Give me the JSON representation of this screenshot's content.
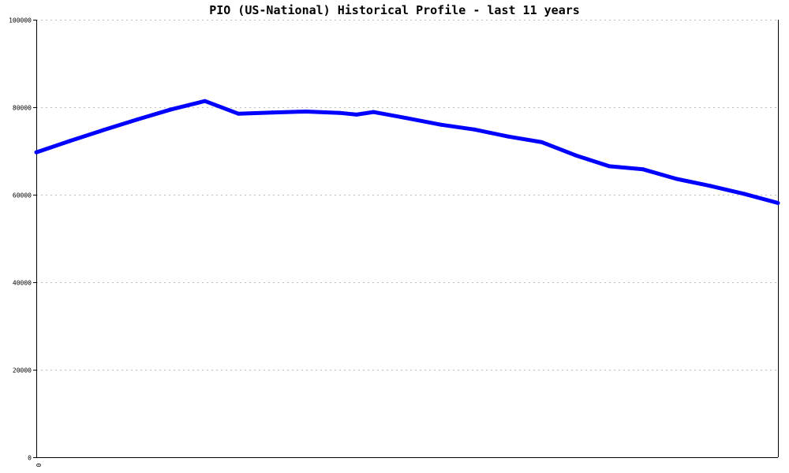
{
  "chart_data": {
    "type": "line",
    "title": "PIO (US-National) Historical Profile - last 11 years",
    "xlabel": "",
    "ylabel": "",
    "ylim": [
      0,
      100000
    ],
    "yticks": [
      0,
      20000,
      40000,
      60000,
      80000,
      100000
    ],
    "ytick_labels": [
      "0",
      "20000",
      "40000",
      "60000",
      "80000",
      "100000"
    ],
    "xtick_labels": [
      "0"
    ],
    "grid": true,
    "legend": "none",
    "series": [
      {
        "color": "#0000ff",
        "x": [
          0,
          0.0455,
          0.0909,
          0.1364,
          0.1818,
          0.2273,
          0.2727,
          0.3182,
          0.3636,
          0.4091,
          0.4318,
          0.4545,
          0.5,
          0.5455,
          0.5909,
          0.6364,
          0.6818,
          0.7273,
          0.7727,
          0.8182,
          0.8636,
          0.9091,
          0.9545,
          1.0
        ],
        "values": [
          69700,
          72300,
          74800,
          77200,
          79500,
          81400,
          78500,
          78800,
          79000,
          78700,
          78300,
          78900,
          77500,
          76000,
          74900,
          73300,
          72000,
          69000,
          66500,
          65800,
          63600,
          62000,
          60200,
          58100
        ]
      }
    ]
  }
}
